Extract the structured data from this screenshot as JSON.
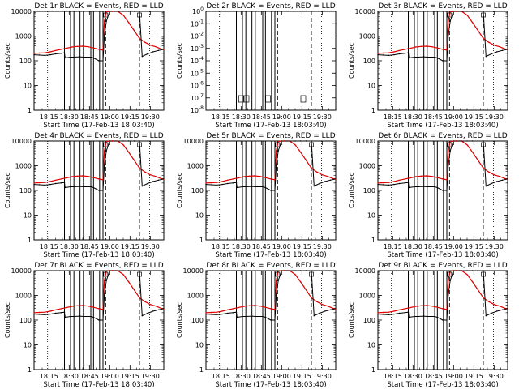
{
  "chart_data": {
    "type": "line",
    "layout": "3x3 grid",
    "xlabel": "Start Time (17-Feb-13 18:03:40)",
    "ylabel": "Counts/sec",
    "x_ticks": [
      "18:15",
      "18:30",
      "18:45",
      "19:00",
      "19:15",
      "19:30"
    ],
    "x_tick_minutes": [
      15,
      30,
      45,
      60,
      75,
      90
    ],
    "x_range_minutes_after_18h": [
      4,
      100
    ],
    "y_scale": "log",
    "y_ticks": [
      "1",
      "10",
      "100",
      "1000",
      "10000"
    ],
    "y_ticks_det2": [
      "10^-8",
      "10^-7",
      "10^-6",
      "10^-5",
      "10^-4",
      "10^-3",
      "10^-2",
      "10^-1",
      "10^0"
    ],
    "y_range": [
      1,
      10000
    ],
    "y_range_det2": [
      1e-08,
      1.0
    ],
    "series_legend": "BLACK = Events, RED = LLD",
    "colors": {
      "events": "#000000",
      "lld": "#e00000",
      "axes": "#000000",
      "background": "#ffffff"
    },
    "solid_vertical_lines_minutes": [
      26.5,
      31,
      33.5,
      38,
      40.5,
      46,
      48,
      52.5,
      55
    ],
    "dashed_vertical_lines_minutes": [
      57,
      82
    ],
    "dotted_vertical_lines_minutes": [
      14,
      89.5
    ],
    "event_series": {
      "x": [
        4,
        8,
        12,
        16,
        20,
        24,
        26.5,
        27,
        31,
        33.5,
        38,
        40.5,
        46,
        48,
        52,
        55,
        56,
        57.5,
        60,
        62,
        66,
        70,
        74,
        78,
        82,
        84,
        88,
        92,
        96,
        100
      ],
      "y": [
        175,
        170,
        165,
        175,
        190,
        200,
        210,
        130,
        140,
        140,
        145,
        140,
        140,
        130,
        100,
        100,
        1000,
        4000,
        10000,
        10000,
        10000,
        10000,
        10000,
        10000,
        10000,
        150,
        190,
        230,
        260,
        290
      ]
    },
    "lld_series": {
      "x": [
        4,
        8,
        12,
        16,
        20,
        24,
        28,
        32,
        36,
        40,
        44,
        48,
        52,
        55,
        56,
        57.5,
        60,
        62,
        66,
        70,
        74,
        78,
        82,
        86,
        90,
        94,
        98,
        100
      ],
      "y": [
        200,
        205,
        210,
        230,
        260,
        290,
        320,
        360,
        380,
        390,
        370,
        330,
        290,
        270,
        4000,
        9500,
        10000,
        10000,
        10000,
        7000,
        3500,
        1700,
        800,
        560,
        430,
        370,
        300,
        280
      ]
    },
    "panels": [
      {
        "title": "Det 1r  BLACK = Events, RED = LLD",
        "ylabel": "Counts/sec",
        "xlabel": "Start Time (17-Feb-13 18:03:40)"
      },
      {
        "title": "Det 2r  BLACK = Events, RED = LLD",
        "ylabel": "Counts/sec",
        "xlabel": "Start Time (17-Feb-13 18:03:40)"
      },
      {
        "title": "Det 3r  BLACK = Events, RED = LLD",
        "ylabel": "Counts/sec",
        "xlabel": "Start Time (17-Feb-13 18:03:40)"
      },
      {
        "title": "Det 4r  BLACK = Events, RED = LLD",
        "ylabel": "Counts/sec",
        "xlabel": "Start Time (17-Feb-13 18:03:40)"
      },
      {
        "title": "Det 5r  BLACK = Events, RED = LLD",
        "ylabel": "Counts/sec",
        "xlabel": "Start Time (17-Feb-13 18:03:40)"
      },
      {
        "title": "Det 6r  BLACK = Events, RED = LLD",
        "ylabel": "Counts/sec",
        "xlabel": "Start Time (17-Feb-13 18:03:40)"
      },
      {
        "title": "Det 7r  BLACK = Events, RED = LLD",
        "ylabel": "Counts/sec",
        "xlabel": "Start Time (17-Feb-13 18:03:40)"
      },
      {
        "title": "Det 8r  BLACK = Events, RED = LLD",
        "ylabel": "Counts/sec",
        "xlabel": "Start Time (17-Feb-13 18:03:40)"
      },
      {
        "title": "Det 9r  BLACK = Events, RED = LLD",
        "ylabel": "Counts/sec",
        "xlabel": "Start Time (17-Feb-13 18:03:40)"
      }
    ]
  }
}
